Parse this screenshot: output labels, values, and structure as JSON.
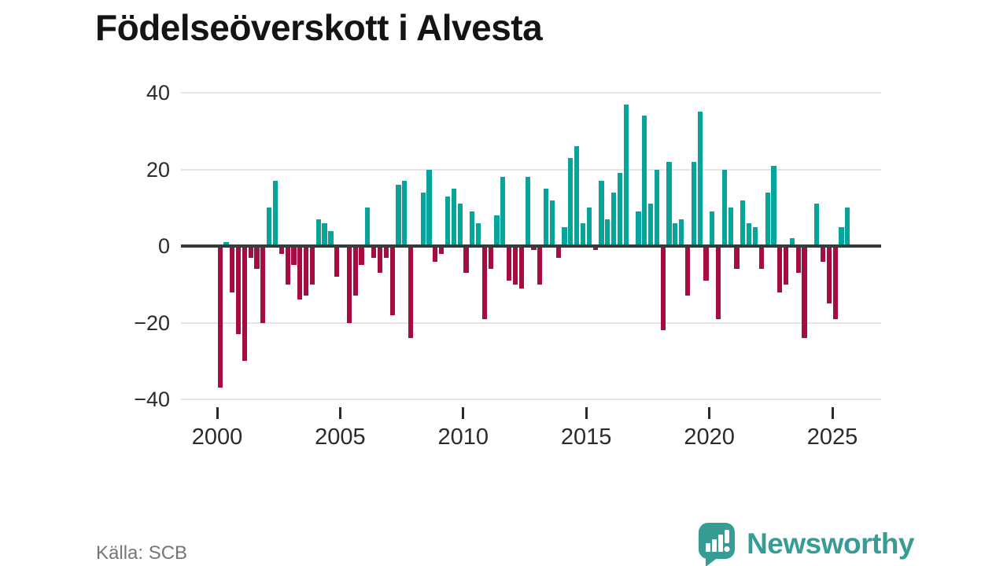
{
  "title": "Födelseöverskott i Alvesta",
  "source": {
    "label": "Källa: SCB"
  },
  "branding": {
    "name": "Newsworthy",
    "icon": "speech-bubble-with-bar-chart-and-exclamation"
  },
  "colors": {
    "positive": "#06a49a",
    "negative": "#a40c42",
    "axis": "#3a3a3a",
    "gridline": "#e4e4e4",
    "title": "#141414",
    "tick_label": "#2b2b2b",
    "source_text": "#767676",
    "brand": "#369c94"
  },
  "y_axis": {
    "tick_values": [
      40,
      20,
      0,
      -20,
      -40
    ],
    "tick_labels": [
      "40",
      "20",
      "0",
      "−20",
      "−40"
    ]
  },
  "x_axis": {
    "tick_years": [
      2000,
      2005,
      2010,
      2015,
      2020,
      2025
    ],
    "tick_labels": [
      "2000",
      "2005",
      "2010",
      "2015",
      "2020",
      "2025"
    ]
  },
  "chart_data": {
    "type": "bar",
    "title": "Födelseöverskott i Alvesta",
    "xlabel": "",
    "ylabel": "",
    "x_type": "quarterly",
    "x_range": [
      "2000-Q1",
      "2025-Q3"
    ],
    "ylim": [
      -40,
      40
    ],
    "grid": true,
    "legend": "none",
    "color_rule": "teal if value >= 0, dark red if value < 0",
    "values_by_year": [
      {
        "year": 2000,
        "quarters": [
          -37,
          1,
          -12,
          -23
        ]
      },
      {
        "year": 2001,
        "quarters": [
          -30,
          -3,
          -6,
          -20
        ]
      },
      {
        "year": 2002,
        "quarters": [
          10,
          17,
          -2,
          -10
        ]
      },
      {
        "year": 2003,
        "quarters": [
          -5,
          -14,
          -13,
          -10
        ]
      },
      {
        "year": 2004,
        "quarters": [
          7,
          6,
          4,
          -8
        ]
      },
      {
        "year": 2005,
        "quarters": [
          0,
          -20,
          -13,
          -5
        ]
      },
      {
        "year": 2006,
        "quarters": [
          10,
          -3,
          -7,
          -3
        ]
      },
      {
        "year": 2007,
        "quarters": [
          -18,
          16,
          17,
          -24
        ]
      },
      {
        "year": 2008,
        "quarters": [
          0,
          14,
          20,
          -4
        ]
      },
      {
        "year": 2009,
        "quarters": [
          -2,
          13,
          15,
          11
        ]
      },
      {
        "year": 2010,
        "quarters": [
          -7,
          9,
          6,
          -19
        ]
      },
      {
        "year": 2011,
        "quarters": [
          -6,
          8,
          18,
          -9
        ]
      },
      {
        "year": 2012,
        "quarters": [
          -10,
          -11,
          18,
          -1
        ]
      },
      {
        "year": 2013,
        "quarters": [
          -10,
          15,
          12,
          -3
        ]
      },
      {
        "year": 2014,
        "quarters": [
          5,
          23,
          26,
          6
        ]
      },
      {
        "year": 2015,
        "quarters": [
          10,
          -1,
          17,
          7
        ]
      },
      {
        "year": 2016,
        "quarters": [
          14,
          19,
          37,
          0
        ]
      },
      {
        "year": 2017,
        "quarters": [
          9,
          34,
          11,
          20
        ]
      },
      {
        "year": 2018,
        "quarters": [
          -22,
          22,
          6,
          7
        ]
      },
      {
        "year": 2019,
        "quarters": [
          -13,
          22,
          35,
          -9
        ]
      },
      {
        "year": 2020,
        "quarters": [
          9,
          -19,
          20,
          10
        ]
      },
      {
        "year": 2021,
        "quarters": [
          -6,
          12,
          6,
          5
        ]
      },
      {
        "year": 2022,
        "quarters": [
          -6,
          14,
          21,
          -12
        ]
      },
      {
        "year": 2023,
        "quarters": [
          -10,
          2,
          -7,
          -24
        ]
      },
      {
        "year": 2024,
        "quarters": [
          0,
          11,
          -4,
          -15
        ]
      },
      {
        "year": 2025,
        "quarters": [
          -19,
          5,
          10
        ]
      }
    ]
  }
}
